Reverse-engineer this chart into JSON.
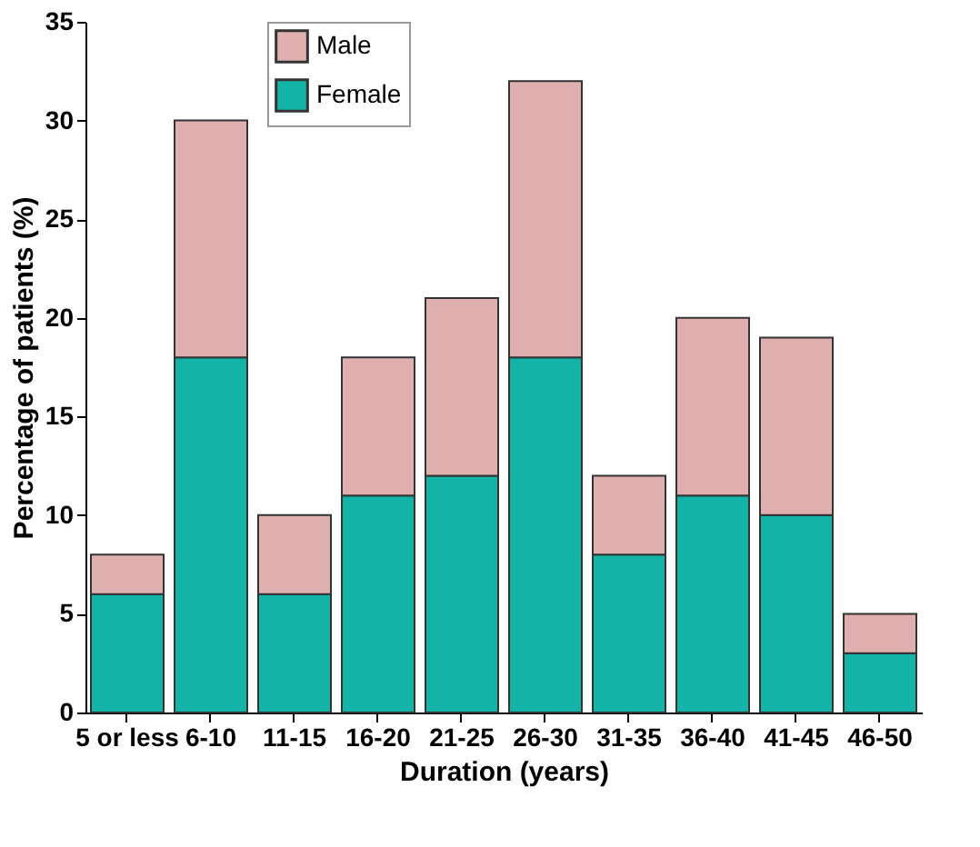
{
  "chart_data": {
    "type": "bar",
    "stacked": true,
    "categories": [
      "5 or less",
      "6-10",
      "11-15",
      "16-20",
      "21-25",
      "26-30",
      "31-35",
      "36-40",
      "41-45",
      "46-50"
    ],
    "series": [
      {
        "name": "Female",
        "color": "#14b3a8",
        "values": [
          6,
          18,
          6,
          11,
          12,
          18,
          8,
          11,
          10,
          3
        ]
      },
      {
        "name": "Male",
        "color": "#e0b0b0",
        "values": [
          2,
          12,
          4,
          7,
          9,
          14,
          4,
          9,
          9,
          2
        ]
      }
    ],
    "xlabel": "Duration (years)",
    "ylabel": "Percentage of patients (%)",
    "ylim": [
      0,
      35
    ],
    "yticks": [
      0,
      5,
      10,
      15,
      20,
      25,
      30,
      35
    ],
    "legend": "top left",
    "grid": false
  }
}
